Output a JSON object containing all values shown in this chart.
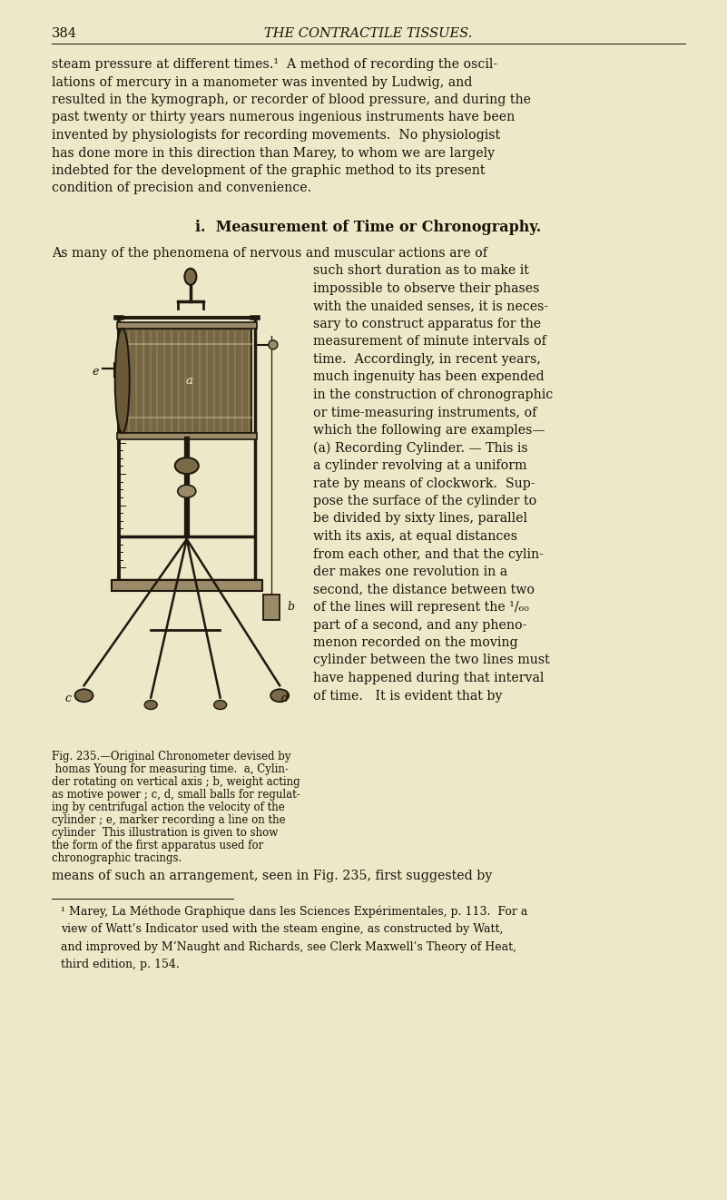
{
  "bg_color": "#EDE8C8",
  "text_color": "#1a1008",
  "header_page": "384",
  "header_title": "THE CONTRACTILE TISSUES.",
  "para1_lines": [
    "steam pressure at different times.¹  A method of recording the oscil-",
    "lations of mercury in a manometer was invented by Ludwig, and",
    "resulted in the kymograph, or recorder of blood pressure, and during the",
    "past twenty or thirty years numerous ingenious instruments have been",
    "invented by physiologists for recording movements.  No physiologist",
    "has done more in this direction than Marey, to whom we are largely",
    "indebted for the development of the graphic method to its present",
    "condition of precision and convenience."
  ],
  "section_heading": "i.  Measurement of Time or Chronography.",
  "para2_first": "As many of the phenomena of nervous and muscular actions are of",
  "para2_right_lines": [
    "such short duration as to make it",
    "impossible to observe their phases",
    "with the unaided senses, it is neces-",
    "sary to construct apparatus for the",
    "measurement of minute intervals of",
    "time.  Accordingly, in recent years,",
    "much ingenuity has been expended",
    "in the construction of chronographic",
    "or time-measuring instruments, of",
    "which the following are examples—",
    "(a) Recording Cylinder. — This is",
    "a cylinder revolving at a uniform",
    "rate by means of clockwork.  Sup-",
    "pose the surface of the cylinder to",
    "be divided by sixty lines, parallel",
    "with its axis, at equal distances",
    "from each other, and that the cylin-",
    "der makes one revolution in a",
    "second, the distance between two",
    "of the lines will represent the ¹/₆₀",
    "part of a second, and any pheno-",
    "menon recorded on the moving",
    "cylinder between the two lines must",
    "have happened during that interval",
    "of time.   It is evident that by"
  ],
  "fig_caption_lines": [
    "Fig. 235.—Original Chronometer devised by",
    " homas Young for measuring time.  a, Cylin-",
    "der rotating on vertical axis ; b, weight acting",
    "as motive power ; c, d, small balls for regulat-",
    "ing by centrifugal action the velocity of the",
    "cylinder ; e, marker recording a line on the",
    "cylinder  This illustration is given to show",
    "the form of the first apparatus used for",
    "chronographic tracings."
  ],
  "para3": "means of such an arrangement, seen in Fig. 235, first suggested by",
  "footnote_lines": [
    "¹ Marey, La Méthode Graphique dans les Sciences Expérimentales, p. 113.  For a",
    "view of Watt’s Indicator used with the steam engine, as constructed by Watt,",
    "and improved by M‘Naught and Richards, see Clerk Maxwell’s Theory of Heat,",
    "third edition, p. 154."
  ]
}
